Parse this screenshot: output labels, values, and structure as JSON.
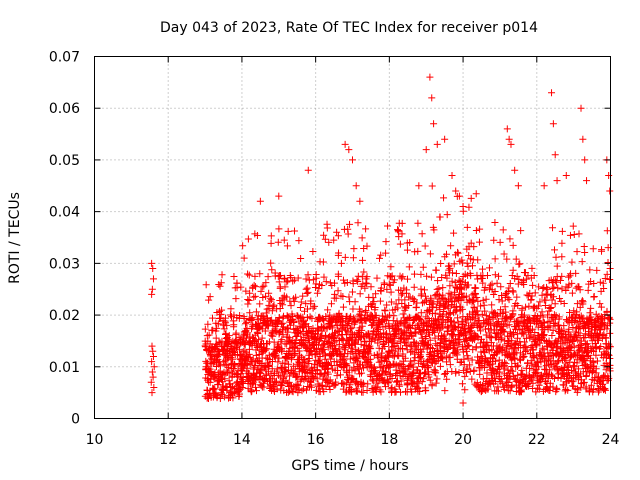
{
  "chart_data": {
    "type": "scatter",
    "title": "Day 043 of 2023, Rate Of TEC Index for receiver p014",
    "xlabel": "GPS time / hours",
    "ylabel": "ROTI / TECUs",
    "xlim": [
      10,
      24
    ],
    "ylim": [
      0,
      0.07
    ],
    "xticks": [
      10,
      12,
      14,
      16,
      18,
      20,
      22,
      24
    ],
    "xtick_labels": [
      "10",
      "12",
      "14",
      "16",
      "18",
      "20",
      "22",
      "24"
    ],
    "yticks": [
      0,
      0.01,
      0.02,
      0.03,
      0.04,
      0.05,
      0.06,
      0.07
    ],
    "ytick_labels": [
      "0",
      "0.01",
      "0.02",
      "0.03",
      "0.04",
      "0.05",
      "0.06",
      "0.07"
    ],
    "grid": true,
    "marker": "+",
    "color": "#ff0000",
    "series": [
      {
        "name": "ROTI",
        "points": [
          [
            11.55,
            0.03
          ],
          [
            11.58,
            0.029
          ],
          [
            11.6,
            0.027
          ],
          [
            11.57,
            0.025
          ],
          [
            11.55,
            0.024
          ],
          [
            11.56,
            0.014
          ],
          [
            11.58,
            0.013
          ],
          [
            11.6,
            0.012
          ],
          [
            11.55,
            0.011
          ],
          [
            11.62,
            0.01
          ],
          [
            11.57,
            0.009
          ],
          [
            11.59,
            0.008
          ],
          [
            11.54,
            0.007
          ],
          [
            11.61,
            0.006
          ],
          [
            11.56,
            0.005
          ],
          [
            14.5,
            0.042
          ],
          [
            15.0,
            0.043
          ],
          [
            15.8,
            0.048
          ],
          [
            16.8,
            0.053
          ],
          [
            17.0,
            0.05
          ],
          [
            17.1,
            0.045
          ],
          [
            17.2,
            0.042
          ],
          [
            18.8,
            0.045
          ],
          [
            19.0,
            0.052
          ],
          [
            19.1,
            0.066
          ],
          [
            19.15,
            0.062
          ],
          [
            19.2,
            0.057
          ],
          [
            19.3,
            0.053
          ],
          [
            19.5,
            0.054
          ],
          [
            19.7,
            0.047
          ],
          [
            19.8,
            0.044
          ],
          [
            19.9,
            0.043
          ],
          [
            20.0,
            0.041
          ],
          [
            21.2,
            0.056
          ],
          [
            21.3,
            0.053
          ],
          [
            21.4,
            0.048
          ],
          [
            21.5,
            0.045
          ],
          [
            22.2,
            0.045
          ],
          [
            22.4,
            0.063
          ],
          [
            22.45,
            0.057
          ],
          [
            22.5,
            0.051
          ],
          [
            22.55,
            0.046
          ],
          [
            22.8,
            0.047
          ],
          [
            23.2,
            0.06
          ],
          [
            23.25,
            0.054
          ],
          [
            23.3,
            0.05
          ],
          [
            23.35,
            0.046
          ],
          [
            23.9,
            0.05
          ],
          [
            23.95,
            0.047
          ],
          [
            23.98,
            0.044
          ],
          [
            20.0,
            0.003
          ],
          [
            16.9,
            0.052
          ],
          [
            21.25,
            0.054
          ]
        ]
      }
    ]
  }
}
